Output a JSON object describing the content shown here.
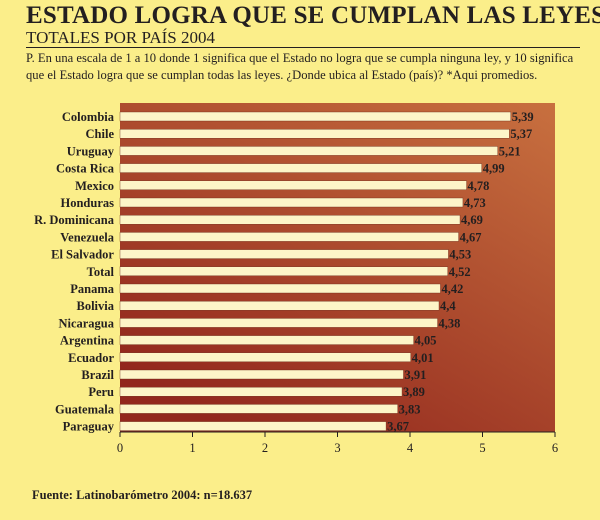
{
  "header": {
    "title": "ESTADO LOGRA QUE SE CUMPLAN LAS LEYES",
    "subtitle": "TOTALES POR PAÍS 2004"
  },
  "question": "P. En una escala de 1 a 10 donde 1 significa que el Estado no logra que se cumpla ninguna ley, y 10 significa que el Estado logra que se cumplan todas las leyes. ¿Donde ubica al Estado (país)? *Aqui promedios.",
  "footer": {
    "source": "Fuente: Latinobarómetro 2004: n=18.637"
  },
  "colors": {
    "background": "#fbee8a",
    "plot_gradient_light": "#c8703f",
    "plot_gradient_dark": "#92271d",
    "bar_fill": "#fdf5c8"
  },
  "chart_data": {
    "type": "bar",
    "orientation": "horizontal",
    "categories": [
      "Colombia",
      "Chile",
      "Uruguay",
      "Costa Rica",
      "Mexico",
      "Honduras",
      "R. Dominicana",
      "Venezuela",
      "El Salvador",
      "Total",
      "Panama",
      "Bolivia",
      "Nicaragua",
      "Argentina",
      "Ecuador",
      "Brazil",
      "Peru",
      "Guatemala",
      "Paraguay"
    ],
    "values": [
      5.39,
      5.37,
      5.21,
      4.99,
      4.78,
      4.73,
      4.69,
      4.67,
      4.53,
      4.52,
      4.42,
      4.4,
      4.38,
      4.05,
      4.01,
      3.91,
      3.89,
      3.83,
      3.67
    ],
    "value_labels": [
      "5,39",
      "5,37",
      "5,21",
      "4,99",
      "4,78",
      "4,73",
      "4,69",
      "4,67",
      "4,53",
      "4,52",
      "4,42",
      "4,4",
      "4,38",
      "4,05",
      "4,01",
      "3,91",
      "3,89",
      "3,83",
      "3,67"
    ],
    "xlim": [
      0,
      6
    ],
    "x_ticks": [
      0,
      1,
      2,
      3,
      4,
      5,
      6
    ],
    "x_tick_labels": [
      "0",
      "1",
      "2",
      "3",
      "4",
      "5",
      "6"
    ],
    "grid": false
  }
}
